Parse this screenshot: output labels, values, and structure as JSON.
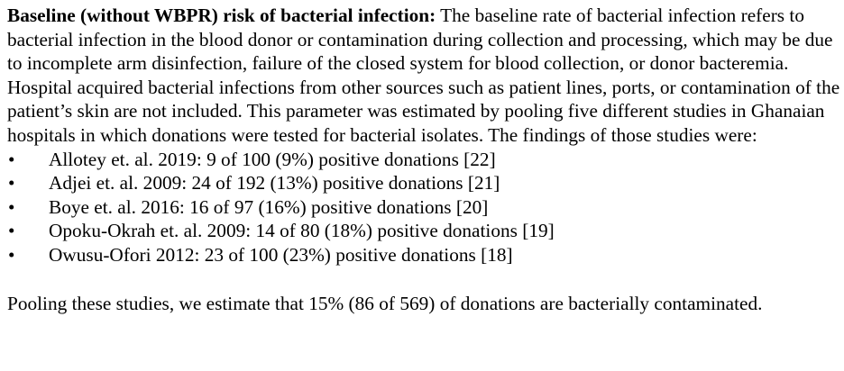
{
  "section": {
    "lead": "Baseline (without WBPR) risk of bacterial infection:",
    "body": " The baseline rate of bacterial infection refers to bacterial infection in the blood donor or contamination during collection and processing, which may be due to incomplete arm disinfection, failure of the closed system for blood collection, or donor bacteremia. Hospital acquired bacterial infections from other sources such as patient lines, ports, or contamination of the patient’s skin are not included. This parameter was estimated by pooling five different studies in Ghanaian hospitals in which donations were tested for bacterial isolates. The findings of those studies were:"
  },
  "bullet_char": "•",
  "findings": [
    "Allotey et. al. 2019: 9 of 100 (9%) positive donations [22]",
    "Adjei et. al. 2009: 24 of 192 (13%) positive donations [21]",
    "Boye et. al. 2016: 16 of 97 (16%) positive donations [20]",
    "Opoku-Okrah et. al. 2009: 14 of 80 (18%) positive donations [19]",
    "Owusu-Ofori 2012: 23 of 100 (23%) positive donations [18]"
  ],
  "conclusion": "Pooling these studies, we estimate that 15% (86 of 569) of donations are bacterially contaminated."
}
